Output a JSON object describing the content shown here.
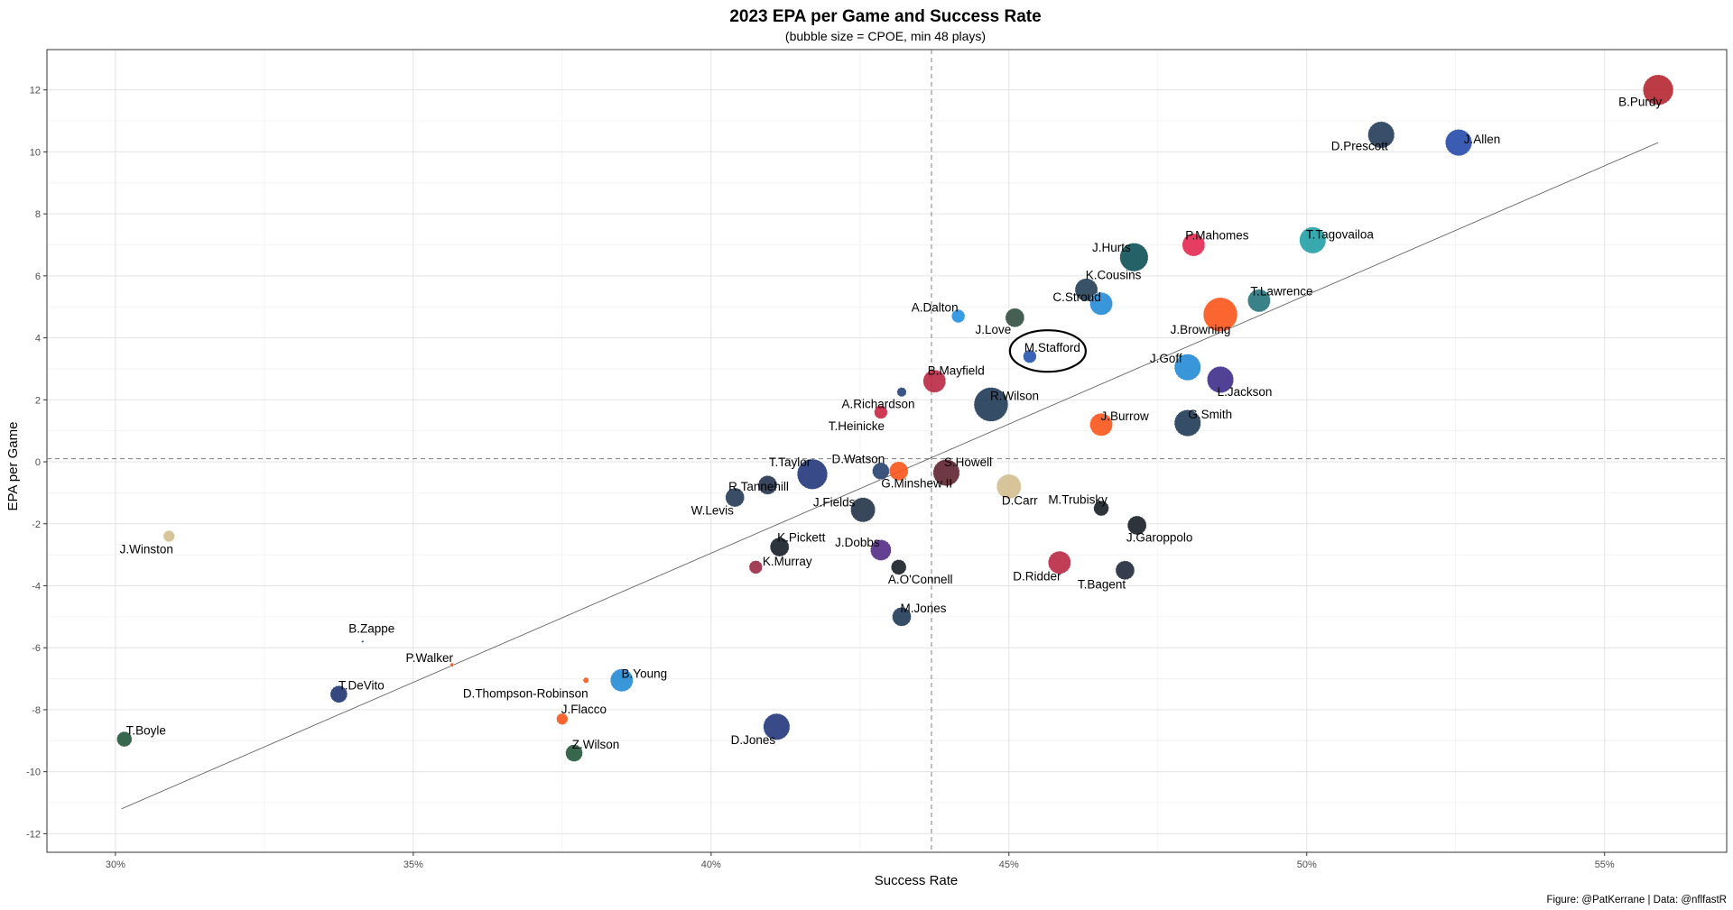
{
  "chart_data": {
    "type": "scatter",
    "title": "2023 EPA per Game and Success Rate",
    "subtitle": "(bubble size = CPOE, min 48 plays)",
    "xlabel": "Success Rate",
    "ylabel": "EPA per Game",
    "caption": "Figure: @PatKerrane | Data: @nflfastR",
    "xlim": [
      0.2885,
      0.5705
    ],
    "ylim": [
      -12.6,
      13.3
    ],
    "x_ticks": [
      0.3,
      0.35,
      0.4,
      0.45,
      0.5,
      0.55
    ],
    "x_tick_labels": [
      "30%",
      "35%",
      "40%",
      "45%",
      "50%",
      "55%"
    ],
    "y_ticks": [
      -12,
      -10,
      -8,
      -6,
      -4,
      -2,
      0,
      2,
      4,
      6,
      8,
      10,
      12
    ],
    "y_tick_labels": [
      "-12",
      "-10",
      "-8",
      "-6",
      "-4",
      "-2",
      "0",
      "2",
      "4",
      "6",
      "8",
      "10",
      "12"
    ],
    "grid": true,
    "reference_lines": {
      "vertical_x": 0.437,
      "horizontal_y": 0.1,
      "style": "dashed"
    },
    "trend_line": {
      "x": [
        0.301,
        0.559
      ],
      "y": [
        -11.2,
        10.3
      ]
    },
    "highlight": {
      "label": "M.Stafford",
      "shape": "ellipse"
    },
    "points": [
      {
        "label": "B.Purdy",
        "x": 0.559,
        "y": 12.0,
        "cpoe": 8.0,
        "color": "#b3202b"
      },
      {
        "label": "J.Allen",
        "x": 0.5255,
        "y": 10.3,
        "cpoe": 7.0,
        "color": "#1f47a8"
      },
      {
        "label": "D.Prescott",
        "x": 0.5125,
        "y": 10.55,
        "cpoe": 7.0,
        "color": "#1e3654"
      },
      {
        "label": "T.Tagovailoa",
        "x": 0.501,
        "y": 7.15,
        "cpoe": 7.0,
        "color": "#1c9da3"
      },
      {
        "label": "P.Mahomes",
        "x": 0.481,
        "y": 7.0,
        "cpoe": 6.0,
        "color": "#e3234c"
      },
      {
        "label": "J.Hurts",
        "x": 0.471,
        "y": 6.6,
        "cpoe": 7.5,
        "color": "#064c53"
      },
      {
        "label": "K.Cousins",
        "x": 0.463,
        "y": 5.55,
        "cpoe": 6.0,
        "color": "#1f3a52"
      },
      {
        "label": "C.Stroud",
        "x": 0.4655,
        "y": 5.1,
        "cpoe": 6.0,
        "color": "#1f87d6"
      },
      {
        "label": "T.Lawrence",
        "x": 0.492,
        "y": 5.2,
        "cpoe": 6.0,
        "color": "#1f6f78"
      },
      {
        "label": "J.Browning",
        "x": 0.4855,
        "y": 4.75,
        "cpoe": 9.0,
        "color": "#fb5012"
      },
      {
        "label": "A.Dalton",
        "x": 0.4415,
        "y": 4.7,
        "cpoe": 3.5,
        "color": "#1d8de0"
      },
      {
        "label": "J.Love",
        "x": 0.451,
        "y": 4.65,
        "cpoe": 5.0,
        "color": "#2b4a3a"
      },
      {
        "label": "M.Stafford",
        "x": 0.4535,
        "y": 3.4,
        "cpoe": 3.5,
        "color": "#1f4fae"
      },
      {
        "label": "J.Goff",
        "x": 0.48,
        "y": 3.05,
        "cpoe": 7.0,
        "color": "#1e87d4"
      },
      {
        "label": "L.Jackson",
        "x": 0.4855,
        "y": 2.65,
        "cpoe": 7.0,
        "color": "#3a2887"
      },
      {
        "label": "B.Mayfield",
        "x": 0.4375,
        "y": 2.6,
        "cpoe": 6.0,
        "color": "#b8213d"
      },
      {
        "label": "A.Richardson",
        "x": 0.432,
        "y": 2.25,
        "cpoe": 2.5,
        "color": "#1f3c74"
      },
      {
        "label": "R.Wilson",
        "x": 0.447,
        "y": 1.85,
        "cpoe": 9.0,
        "color": "#1a3452"
      },
      {
        "label": "T.Heinicke",
        "x": 0.4285,
        "y": 1.6,
        "cpoe": 3.5,
        "color": "#c8203d"
      },
      {
        "label": "J.Burrow",
        "x": 0.4655,
        "y": 1.2,
        "cpoe": 6.0,
        "color": "#fb5012"
      },
      {
        "label": "G.Smith",
        "x": 0.48,
        "y": 1.25,
        "cpoe": 7.0,
        "color": "#1a3452"
      },
      {
        "label": "T.Taylor",
        "x": 0.417,
        "y": -0.4,
        "cpoe": 8.0,
        "color": "#1d3278"
      },
      {
        "label": "D.Watson",
        "x": 0.4285,
        "y": -0.3,
        "cpoe": 4.5,
        "color": "#1f3c6a"
      },
      {
        "label": "G.Minshew II",
        "x": 0.4315,
        "y": -0.3,
        "cpoe": 5.0,
        "color": "#fb5012"
      },
      {
        "label": "S.Howell",
        "x": 0.4395,
        "y": -0.35,
        "cpoe": 7.0,
        "color": "#5a1d2a"
      },
      {
        "label": "D.Carr",
        "x": 0.45,
        "y": -0.8,
        "cpoe": 6.5,
        "color": "#d3bc8d"
      },
      {
        "label": "R.Tannehill",
        "x": 0.4095,
        "y": -0.75,
        "cpoe": 5.0,
        "color": "#1e2e4a"
      },
      {
        "label": "W.Levis",
        "x": 0.404,
        "y": -1.15,
        "cpoe": 5.0,
        "color": "#1e3452"
      },
      {
        "label": "J.Fields",
        "x": 0.4255,
        "y": -1.55,
        "cpoe": 6.5,
        "color": "#1e2e44"
      },
      {
        "label": "M.Trubisky",
        "x": 0.4655,
        "y": -1.5,
        "cpoe": 4.0,
        "color": "#101820"
      },
      {
        "label": "J.Garoppolo",
        "x": 0.4715,
        "y": -2.05,
        "cpoe": 5.0,
        "color": "#101820"
      },
      {
        "label": "K.Pickett",
        "x": 0.4115,
        "y": -2.75,
        "cpoe": 5.0,
        "color": "#101820"
      },
      {
        "label": "J.Dobbs",
        "x": 0.4285,
        "y": -2.85,
        "cpoe": 5.5,
        "color": "#4f2683"
      },
      {
        "label": "A.O'Connell",
        "x": 0.4315,
        "y": -3.4,
        "cpoe": 4.0,
        "color": "#101820"
      },
      {
        "label": "K.Murray",
        "x": 0.4075,
        "y": -3.4,
        "cpoe": 3.5,
        "color": "#97233f"
      },
      {
        "label": "D.Ridder",
        "x": 0.4585,
        "y": -3.25,
        "cpoe": 6.0,
        "color": "#b8213d"
      },
      {
        "label": "T.Bagent",
        "x": 0.4695,
        "y": -3.5,
        "cpoe": 5.0,
        "color": "#1a2234"
      },
      {
        "label": "M.Jones",
        "x": 0.432,
        "y": -5.0,
        "cpoe": 5.0,
        "color": "#1a3452"
      },
      {
        "label": "J.Winston",
        "x": 0.309,
        "y": -2.4,
        "cpoe": 3.0,
        "color": "#d3bc8d"
      },
      {
        "label": "B.Zappe",
        "x": 0.3415,
        "y": -5.8,
        "cpoe": 0.3,
        "color": "#1a3452"
      },
      {
        "label": "P.Walker",
        "x": 0.3565,
        "y": -6.55,
        "cpoe": 1.0,
        "color": "#fb5012"
      },
      {
        "label": "D.Thompson-Robinson",
        "x": 0.379,
        "y": -7.05,
        "cpoe": 1.5,
        "color": "#fb5012"
      },
      {
        "label": "B.Young",
        "x": 0.385,
        "y": -7.05,
        "cpoe": 6.0,
        "color": "#1e87d4"
      },
      {
        "label": "T.DeVito",
        "x": 0.3375,
        "y": -7.5,
        "cpoe": 4.5,
        "color": "#1a2f6e"
      },
      {
        "label": "J.Flacco",
        "x": 0.375,
        "y": -8.3,
        "cpoe": 3.0,
        "color": "#fb5012"
      },
      {
        "label": "D.Jones",
        "x": 0.411,
        "y": -8.55,
        "cpoe": 7.0,
        "color": "#1d3278"
      },
      {
        "label": "T.Boyle",
        "x": 0.3015,
        "y": -8.95,
        "cpoe": 4.0,
        "color": "#1e5234"
      },
      {
        "label": "Z.Wilson",
        "x": 0.377,
        "y": -9.4,
        "cpoe": 4.5,
        "color": "#1e5234"
      }
    ]
  }
}
